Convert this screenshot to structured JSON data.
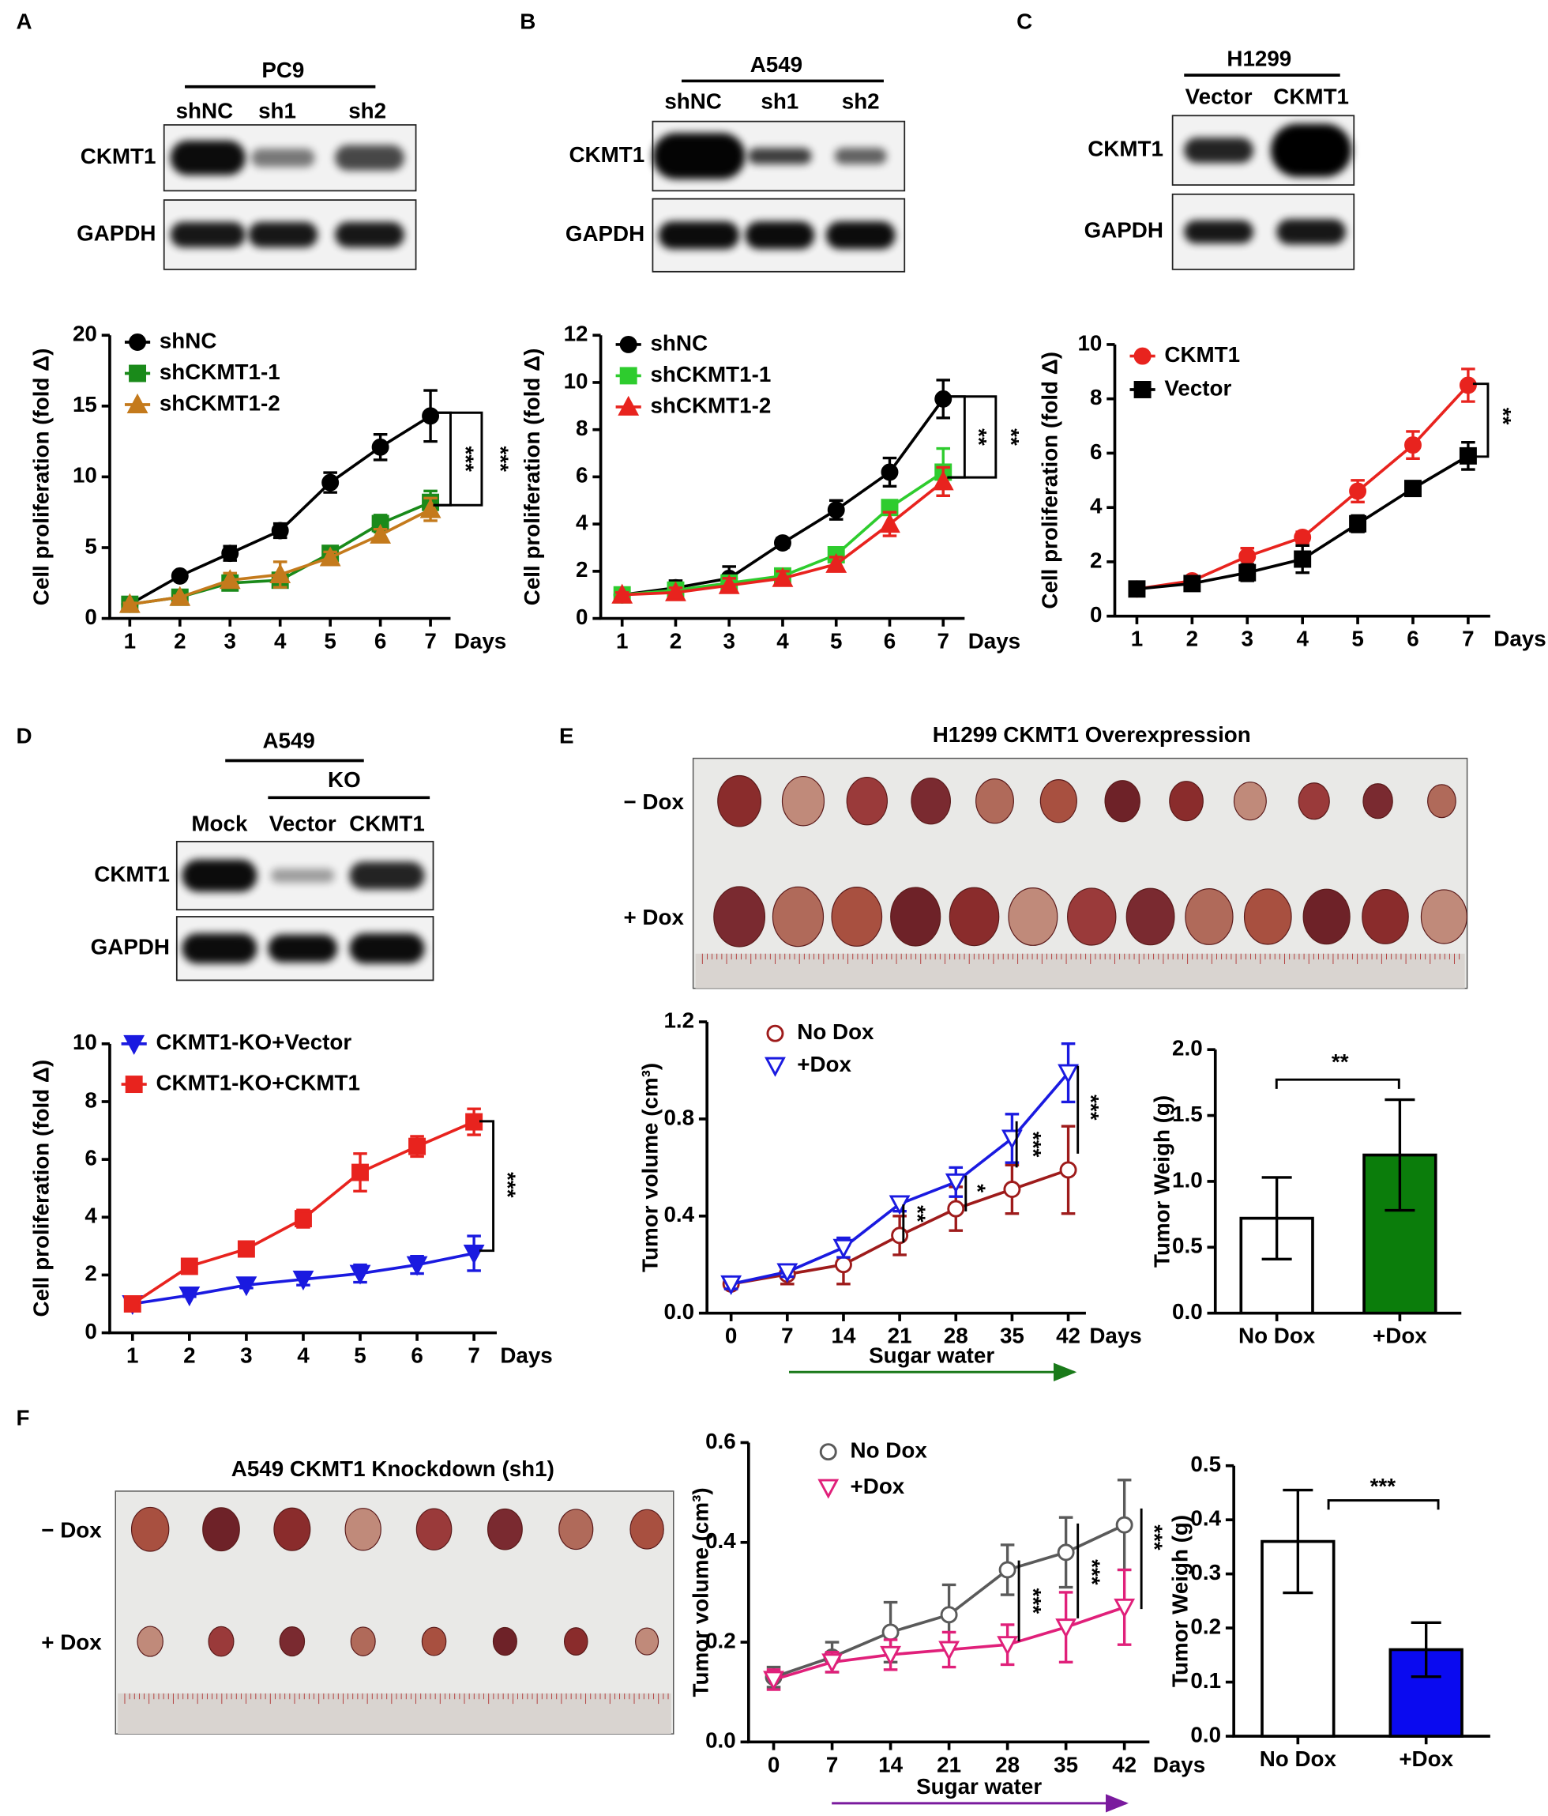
{
  "panels": [
    "A",
    "B",
    "C",
    "D",
    "E",
    "F"
  ],
  "blots": [
    {
      "group": "PC9",
      "lanes": [
        "shNC",
        "sh1",
        "sh2"
      ],
      "rows": [
        "CKMT1",
        "GAPDH"
      ]
    },
    {
      "group": "A549",
      "lanes": [
        "shNC",
        "sh1",
        "sh2"
      ],
      "rows": [
        "CKMT1",
        "GAPDH"
      ]
    },
    {
      "group": "H1299",
      "lanes": [
        "Vector",
        "CKMT1"
      ],
      "rows": [
        "CKMT1",
        "GAPDH"
      ]
    },
    {
      "group": "A549",
      "subgroup": "KO",
      "lanes": [
        "Mock",
        "Vector",
        "CKMT1"
      ],
      "rows": [
        "CKMT1",
        "GAPDH"
      ]
    }
  ],
  "photos": [
    {
      "title": "H1299 CKMT1 Overexpression",
      "rows": [
        "− Dox",
        "+ Dox"
      ]
    },
    {
      "title": "A549 CKMT1 Knockdown (sh1)",
      "rows": [
        "− Dox",
        "+ Dox"
      ]
    }
  ],
  "chart_data": [
    {
      "type": "line",
      "ylabel": "Cell proliferation (fold Δ)",
      "xlabel": "Days",
      "x": [
        1,
        2,
        3,
        4,
        5,
        6,
        7
      ],
      "xlim": [
        0.6,
        7.4
      ],
      "xticks": [
        1,
        2,
        3,
        4,
        5,
        6,
        7
      ],
      "ylim": [
        0,
        20
      ],
      "yticks": [
        0,
        5,
        10,
        15,
        20
      ],
      "series": [
        {
          "name": "shNC",
          "color": "#000000",
          "marker": "circle",
          "filled": true,
          "values": [
            1,
            3,
            4.6,
            6.2,
            9.6,
            12.1,
            14.3
          ],
          "errors": [
            0.1,
            0.2,
            0.5,
            0.5,
            0.7,
            0.9,
            1.8
          ]
        },
        {
          "name": "shCKMT1-1",
          "color": "#1a8a1a",
          "marker": "square",
          "filled": true,
          "values": [
            1,
            1.5,
            2.5,
            2.7,
            4.6,
            6.7,
            8.2
          ],
          "errors": [
            0.1,
            0.1,
            0.3,
            0.4,
            0.5,
            0.6,
            0.8
          ]
        },
        {
          "name": "shCKMT1-2",
          "color": "#c47a1c",
          "marker": "triangle-up",
          "filled": true,
          "values": [
            1,
            1.5,
            2.7,
            3.1,
            4.3,
            5.9,
            7.7
          ],
          "errors": [
            0.1,
            0.1,
            0.5,
            0.9,
            0.4,
            0.4,
            0.8
          ]
        }
      ],
      "annotations": [
        "***",
        "***"
      ]
    },
    {
      "type": "line",
      "ylabel": "Cell proliferation (fold Δ)",
      "xlabel": "Days",
      "x": [
        1,
        2,
        3,
        4,
        5,
        6,
        7
      ],
      "xlim": [
        0.6,
        7.4
      ],
      "xticks": [
        1,
        2,
        3,
        4,
        5,
        6,
        7
      ],
      "ylim": [
        0,
        12
      ],
      "yticks": [
        0,
        2,
        4,
        6,
        8,
        10,
        12
      ],
      "series": [
        {
          "name": "shNC",
          "color": "#000000",
          "marker": "circle",
          "filled": true,
          "values": [
            1,
            1.3,
            1.7,
            3.2,
            4.6,
            6.2,
            9.3
          ],
          "errors": [
            0.1,
            0.3,
            0.5,
            0.2,
            0.4,
            0.6,
            0.8
          ]
        },
        {
          "name": "shCKMT1-1",
          "color": "#2ecc2e",
          "marker": "square",
          "filled": true,
          "values": [
            1,
            1.2,
            1.5,
            1.8,
            2.7,
            4.7,
            6.2
          ],
          "errors": [
            0.1,
            0.2,
            0.3,
            0.3,
            0.2,
            0.3,
            1.0
          ]
        },
        {
          "name": "shCKMT1-2",
          "color": "#e8231e",
          "marker": "triangle-up",
          "filled": true,
          "values": [
            1,
            1.1,
            1.4,
            1.7,
            2.3,
            4.0,
            5.8
          ],
          "errors": [
            0.1,
            0.2,
            0.3,
            0.3,
            0.3,
            0.5,
            0.6
          ]
        }
      ],
      "annotations": [
        "**",
        "**"
      ]
    },
    {
      "type": "line",
      "ylabel": "Cell proliferation (fold Δ)",
      "xlabel": "Days",
      "x": [
        1,
        2,
        3,
        4,
        5,
        6,
        7
      ],
      "xlim": [
        0.6,
        7.4
      ],
      "xticks": [
        1,
        2,
        3,
        4,
        5,
        6,
        7
      ],
      "ylim": [
        0,
        10
      ],
      "yticks": [
        0,
        2,
        4,
        6,
        8,
        10
      ],
      "series": [
        {
          "name": "CKMT1",
          "color": "#e8231e",
          "marker": "circle",
          "filled": true,
          "values": [
            1,
            1.3,
            2.2,
            2.9,
            4.6,
            6.3,
            8.5
          ],
          "errors": [
            0.1,
            0.1,
            0.3,
            0.2,
            0.4,
            0.5,
            0.6
          ]
        },
        {
          "name": "Vector",
          "color": "#000000",
          "marker": "square",
          "filled": true,
          "values": [
            1,
            1.2,
            1.6,
            2.1,
            3.4,
            4.7,
            5.9
          ],
          "errors": [
            0.1,
            0.1,
            0.3,
            0.5,
            0.3,
            0.15,
            0.5
          ]
        }
      ],
      "annotations": [
        "**"
      ]
    },
    {
      "type": "line",
      "ylabel": "Cell proliferation (fold Δ)",
      "xlabel": "Days",
      "x": [
        1,
        2,
        3,
        4,
        5,
        6,
        7
      ],
      "xlim": [
        0.6,
        7.4
      ],
      "xticks": [
        1,
        2,
        3,
        4,
        5,
        6,
        7
      ],
      "ylim": [
        0,
        10
      ],
      "yticks": [
        0,
        2,
        4,
        6,
        8,
        10
      ],
      "series": [
        {
          "name": "CKMT1-KO+Vector",
          "color": "#1a1ae0",
          "marker": "triangle-down",
          "filled": true,
          "values": [
            1,
            1.3,
            1.65,
            1.85,
            2.05,
            2.35,
            2.75
          ],
          "errors": [
            0.05,
            0.05,
            0.1,
            0.2,
            0.3,
            0.3,
            0.6
          ]
        },
        {
          "name": "CKMT1-KO+CKMT1",
          "color": "#e8231e",
          "marker": "square",
          "filled": true,
          "values": [
            1,
            2.3,
            2.9,
            3.95,
            5.55,
            6.45,
            7.3
          ],
          "errors": [
            0.1,
            0.15,
            0.25,
            0.3,
            0.65,
            0.35,
            0.45
          ]
        }
      ],
      "annotations": [
        "***"
      ]
    },
    {
      "type": "line",
      "ylabel": "Tumor volume (cm³)",
      "xlabel": "Days",
      "arrow_label": "Sugar water",
      "arrow_color": "#1a7a1a",
      "x": [
        0,
        7,
        14,
        21,
        28,
        35,
        42
      ],
      "xlim": [
        -3,
        44.2
      ],
      "xticks": [
        0,
        7,
        14,
        21,
        28,
        35,
        42
      ],
      "ylim": [
        0,
        1.2
      ],
      "yticks": [
        {
          "value": 0,
          "label": "0.0"
        },
        0.4,
        0.8,
        1.2
      ],
      "series": [
        {
          "name": "No Dox",
          "color": "#9e1b1b",
          "marker": "circle",
          "filled": false,
          "values": [
            0.12,
            0.16,
            0.2,
            0.32,
            0.43,
            0.51,
            0.59
          ],
          "errors": [
            0.02,
            0.04,
            0.08,
            0.08,
            0.09,
            0.1,
            0.18
          ]
        },
        {
          "name": "+Dox",
          "color": "#1a1ae0",
          "marker": "triangle-down",
          "filled": false,
          "values": [
            0.12,
            0.17,
            0.27,
            0.45,
            0.54,
            0.72,
            0.99
          ],
          "errors": [
            0.02,
            0.02,
            0.04,
            0.03,
            0.06,
            0.1,
            0.12
          ]
        }
      ],
      "annotations": [
        "**",
        "*",
        "***",
        "***"
      ]
    },
    {
      "type": "bar",
      "ylabel": "Tumor Weigh (g)",
      "categories": [
        "No Dox",
        "+Dox"
      ],
      "values": [
        0.72,
        1.2
      ],
      "errors": [
        0.31,
        0.42
      ],
      "colors": [
        "#ffffff",
        "#0b7d0b"
      ],
      "ylim": [
        0,
        2
      ],
      "yticks": [
        {
          "value": 0,
          "label": "0.0"
        },
        0.5,
        {
          "value": 1,
          "label": "1.0"
        },
        1.5,
        {
          "value": 2,
          "label": "2.0"
        }
      ],
      "annotations": [
        "**"
      ]
    },
    {
      "type": "line",
      "ylabel": "Tumor volume (cm³)",
      "xlabel": "Days",
      "arrow_label": "Sugar water",
      "arrow_color": "#7a1a9e",
      "x": [
        0,
        7,
        14,
        21,
        28,
        35,
        42
      ],
      "xlim": [
        -3,
        45
      ],
      "xticks": [
        0,
        7,
        14,
        21,
        28,
        35,
        42
      ],
      "ylim": [
        0,
        0.6
      ],
      "yticks": [
        {
          "value": 0,
          "label": "0.0"
        },
        0.2,
        0.4,
        0.6
      ],
      "series": [
        {
          "name": "No Dox",
          "color": "#5a5a5a",
          "marker": "circle",
          "filled": false,
          "values": [
            0.13,
            0.17,
            0.22,
            0.255,
            0.345,
            0.38,
            0.435
          ],
          "errors": [
            0.02,
            0.03,
            0.06,
            0.06,
            0.05,
            0.07,
            0.09
          ]
        },
        {
          "name": "+Dox",
          "color": "#e0207a",
          "marker": "triangle-down",
          "filled": false,
          "values": [
            0.125,
            0.16,
            0.175,
            0.185,
            0.195,
            0.23,
            0.27
          ],
          "errors": [
            0.02,
            0.02,
            0.03,
            0.035,
            0.04,
            0.07,
            0.075
          ]
        }
      ],
      "annotations": [
        "***",
        "***",
        "***"
      ]
    },
    {
      "type": "bar",
      "ylabel": "Tumor Weigh (g)",
      "categories": [
        "No Dox",
        "+Dox"
      ],
      "values": [
        0.36,
        0.16
      ],
      "errors": [
        0.095,
        0.05
      ],
      "colors": [
        "#ffffff",
        "#0a0af0"
      ],
      "ylim": [
        0,
        0.5
      ],
      "yticks": [
        {
          "value": 0,
          "label": "0.0"
        },
        0.1,
        0.2,
        0.3,
        0.4,
        0.5
      ],
      "annotations": [
        "***"
      ]
    }
  ]
}
